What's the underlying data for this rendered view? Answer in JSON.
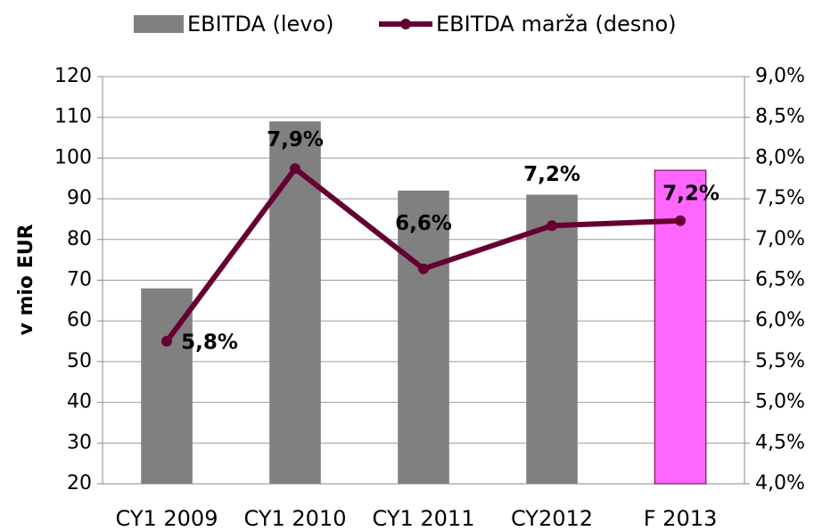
{
  "chart_data": {
    "type": "bar",
    "y_axis_label": "v mio EUR",
    "categories": [
      "CY1 2009",
      "CY1 2010",
      "CY1 2011",
      "CY2012",
      "F 2013"
    ],
    "series": [
      {
        "name": "EBITDA (levo)",
        "type": "bar",
        "color": "#808080",
        "colors": [
          "#808080",
          "#808080",
          "#808080",
          "#808080",
          "#ff66ff"
        ],
        "values": [
          68,
          109,
          92,
          91,
          97
        ]
      },
      {
        "name": "EBITDA marža (desno)",
        "type": "line",
        "axis": "y2",
        "color": "#660033",
        "values": [
          5.75,
          7.87,
          6.64,
          7.17,
          7.23
        ],
        "value_labels": [
          "5,8%",
          "7,9%",
          "6,6%",
          "7,2%",
          "7,2%"
        ]
      }
    ],
    "ylim": [
      20,
      120
    ],
    "yticks": [
      20,
      30,
      40,
      50,
      60,
      70,
      80,
      90,
      100,
      110,
      120
    ],
    "y2lim": [
      4,
      9
    ],
    "y2ticks": [
      {
        "value": 4,
        "label": "4,0%"
      },
      {
        "value": 4.5,
        "label": "4,5%"
      },
      {
        "value": 5,
        "label": "5,0%"
      },
      {
        "value": 5.5,
        "label": "5,5%"
      },
      {
        "value": 6,
        "label": "6,0%"
      },
      {
        "value": 6.5,
        "label": "6,5%"
      },
      {
        "value": 7,
        "label": "7,0%"
      },
      {
        "value": 7.5,
        "label": "7,5%"
      },
      {
        "value": 8,
        "label": "8,0%"
      },
      {
        "value": 8.5,
        "label": "8,5%"
      },
      {
        "value": 9,
        "label": "9,0%"
      }
    ],
    "grid": true,
    "legend": "top"
  }
}
